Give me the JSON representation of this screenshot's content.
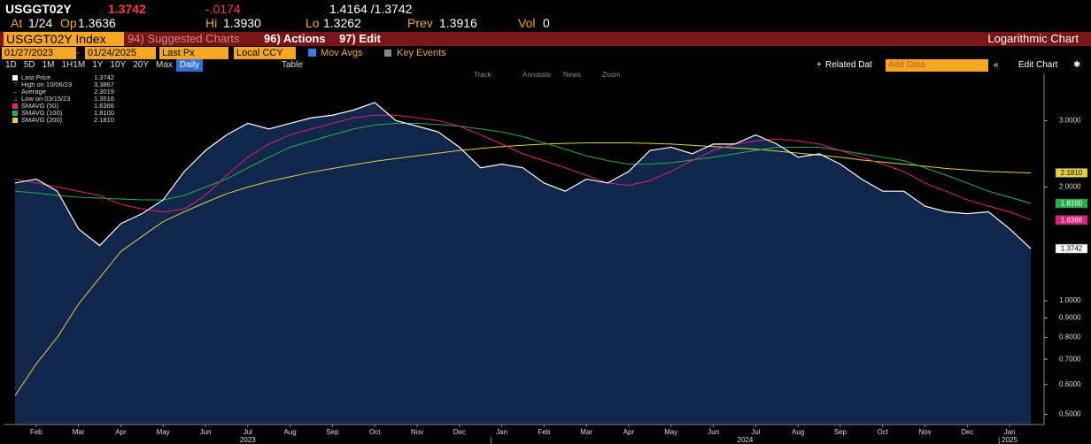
{
  "header": {
    "ticker": "USGGT02Y",
    "last": "1.3742",
    "change": "-.0174",
    "bid_ask": "1.4164 /1.3742",
    "fields": [
      {
        "label": "At",
        "value": "1/24"
      },
      {
        "label": "Op",
        "value": "1.3636"
      },
      {
        "label": "Hi",
        "value": "1.3930"
      },
      {
        "label": "Lo",
        "value": "1.3262"
      },
      {
        "label": "Prev",
        "value": "1.3916"
      },
      {
        "label": "Vol",
        "value": "0"
      }
    ]
  },
  "menu_bar": {
    "security": "USGGT02Y Index",
    "suggested": "94) Suggested Charts",
    "actions": "96) Actions",
    "edit": "97) Edit",
    "chart_mode": "Logarithmic Chart"
  },
  "controls": {
    "start_date": "01/27/2023",
    "end_date": "01/24/2025",
    "field": "Last Px",
    "currency": "Local CCY",
    "mov_avgs": "Mov Avgs",
    "key_events": "Key Events"
  },
  "periods": [
    "1D",
    "5D",
    "1M",
    "1H1M",
    "1Y",
    "10Y",
    "20Y",
    "Max",
    "Daily"
  ],
  "table": "Table",
  "related": "Related Dat",
  "add_data": "Add Data",
  "edit_chart": "Edit Chart",
  "chart_tools": [
    "Track",
    "Annotate",
    "News",
    "Zoom"
  ],
  "chart_data": {
    "type": "line",
    "log_scale": true,
    "grid": false,
    "legend": "top-left",
    "categories": [
      null,
      "Feb",
      null,
      "Mar",
      null,
      "Apr",
      null,
      "May",
      null,
      "Jun",
      null,
      "Jul",
      null,
      "Aug",
      null,
      "Sep",
      null,
      "Oct",
      null,
      "Nov",
      null,
      "Dec",
      null,
      "Jan",
      null,
      "Feb",
      null,
      "Mar",
      null,
      "Apr",
      null,
      "May",
      null,
      "Jun",
      null,
      "Jul",
      null,
      "Aug",
      null,
      "Sep",
      null,
      "Oct",
      null,
      "Nov",
      null,
      "Dec",
      null,
      "Jan",
      null
    ],
    "x_group_labels": [
      "2023",
      "2024",
      "2025"
    ],
    "ylim": [
      0.47,
      4.0
    ],
    "yticks": [
      {
        "value": 0.5,
        "label": "0.5000"
      },
      {
        "value": 0.6,
        "label": "0.6000"
      },
      {
        "value": 0.7,
        "label": "0.7000"
      },
      {
        "value": 0.8,
        "label": "0.8000"
      },
      {
        "value": 0.9,
        "label": "0.9000"
      },
      {
        "value": 1.0,
        "label": "1.0000"
      },
      {
        "value": 2.0,
        "label": "2.0000"
      },
      {
        "value": 3.0,
        "label": "3.0000"
      }
    ],
    "series": [
      {
        "name": "Last Price",
        "color": "#ffffff",
        "fill": "#10264a",
        "last_label": "1.3742",
        "values": [
          2.05,
          2.1,
          1.95,
          1.55,
          1.4,
          1.6,
          1.7,
          1.85,
          2.2,
          2.5,
          2.75,
          2.95,
          2.85,
          2.95,
          3.05,
          3.1,
          3.2,
          3.35,
          3.0,
          2.9,
          2.8,
          2.55,
          2.25,
          2.3,
          2.25,
          2.05,
          1.95,
          2.1,
          2.05,
          2.2,
          2.5,
          2.55,
          2.45,
          2.6,
          2.6,
          2.75,
          2.6,
          2.4,
          2.45,
          2.3,
          2.1,
          1.95,
          1.95,
          1.78,
          1.72,
          1.7,
          1.72,
          1.55,
          1.3742
        ]
      },
      {
        "name": "SMAVG (50)",
        "color": "#e0207e",
        "last_label": "1.6366",
        "values": [
          2.1,
          2.05,
          2.0,
          1.95,
          1.9,
          1.8,
          1.75,
          1.72,
          1.75,
          1.9,
          2.15,
          2.4,
          2.6,
          2.75,
          2.85,
          2.95,
          3.05,
          3.1,
          3.1,
          3.05,
          3.0,
          2.9,
          2.75,
          2.6,
          2.45,
          2.35,
          2.25,
          2.15,
          2.05,
          2.02,
          2.08,
          2.2,
          2.35,
          2.5,
          2.6,
          2.65,
          2.68,
          2.65,
          2.6,
          2.5,
          2.4,
          2.3,
          2.2,
          2.05,
          1.95,
          1.85,
          1.78,
          1.72,
          1.6366
        ]
      },
      {
        "name": "SMAVG (100)",
        "color": "#22b24c",
        "last_label": "1.8100",
        "values": [
          1.95,
          1.93,
          1.9,
          1.88,
          1.87,
          1.86,
          1.85,
          1.85,
          1.9,
          2.0,
          2.1,
          2.25,
          2.4,
          2.55,
          2.65,
          2.75,
          2.85,
          2.92,
          2.95,
          2.95,
          2.93,
          2.9,
          2.85,
          2.8,
          2.72,
          2.62,
          2.52,
          2.42,
          2.35,
          2.3,
          2.3,
          2.32,
          2.36,
          2.4,
          2.45,
          2.5,
          2.55,
          2.55,
          2.55,
          2.5,
          2.45,
          2.4,
          2.35,
          2.25,
          2.15,
          2.05,
          1.95,
          1.88,
          1.81
        ]
      },
      {
        "name": "SMAVG (200)",
        "color": "#e6d23c",
        "last_label": "2.1810",
        "values": [
          0.56,
          0.68,
          0.8,
          0.98,
          1.15,
          1.35,
          1.48,
          1.62,
          1.72,
          1.82,
          1.92,
          2.0,
          2.07,
          2.13,
          2.19,
          2.24,
          2.29,
          2.34,
          2.38,
          2.42,
          2.46,
          2.5,
          2.53,
          2.56,
          2.58,
          2.6,
          2.61,
          2.62,
          2.62,
          2.62,
          2.61,
          2.6,
          2.58,
          2.56,
          2.54,
          2.52,
          2.49,
          2.46,
          2.43,
          2.4,
          2.36,
          2.33,
          2.3,
          2.27,
          2.24,
          2.22,
          2.2,
          2.19,
          2.181
        ]
      }
    ],
    "stats": [
      {
        "name": "High on 10/06/23",
        "value": 3.3867
      },
      {
        "name": "Average",
        "value": 2.3019
      },
      {
        "name": "Low on 03/15/23",
        "value": 1.3516
      }
    ]
  }
}
